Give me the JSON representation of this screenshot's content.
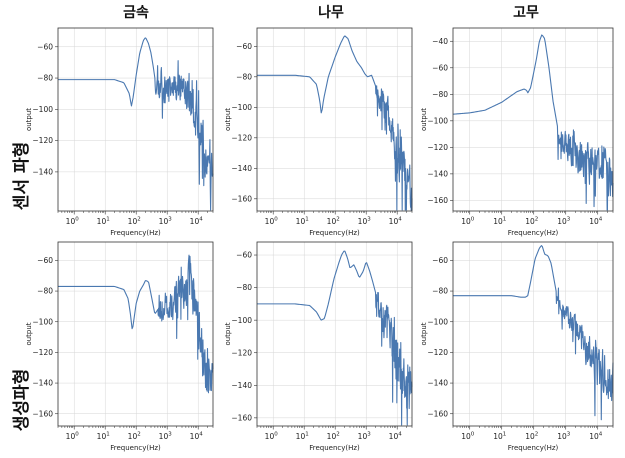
{
  "figure": {
    "column_titles": [
      "금속",
      "나무",
      "고무"
    ],
    "row_titles": [
      "센서 파형",
      "생성파형"
    ],
    "line_color": "#4a78b0"
  },
  "chart_data": [
    {
      "type": "line",
      "row": 0,
      "col": 0,
      "xlabel": "Frequency(Hz)",
      "ylabel": "output",
      "xscale": "log",
      "xlim": [
        0.3,
        30000
      ],
      "ylim": [
        -165,
        -48
      ],
      "yticks": [
        -140,
        -120,
        -100,
        -80,
        -60
      ],
      "xticks": [
        1,
        10,
        100,
        1000,
        10000
      ],
      "xticklabels": [
        "10^0",
        "10^1",
        "10^2",
        "10^3",
        "10^4"
      ],
      "series": [
        {
          "profile": "smooth",
          "x": [
            0.3,
            5,
            20,
            40,
            60,
            70,
            80,
            100,
            130,
            170,
            200,
            250,
            300,
            350,
            400
          ],
          "y": [
            -81,
            -81,
            -81,
            -83,
            -90,
            -98,
            -92,
            -78,
            -64,
            -56,
            -54,
            -58,
            -64,
            -72,
            -80
          ],
          "noise": {
            "x_start": 400,
            "x_end": 30000,
            "env": [
              [
                400,
                -82
              ],
              [
                1000,
                -88
              ],
              [
                3000,
                -84
              ],
              [
                6000,
                -96
              ],
              [
                10000,
                -112
              ],
              [
                20000,
                -135
              ],
              [
                30000,
                -145
              ]
            ],
            "amp": [
              [
                400,
                10
              ],
              [
                3000,
                14
              ],
              [
                10000,
                22
              ],
              [
                30000,
                18
              ]
            ],
            "seed": 11,
            "n": 170
          }
        }
      ]
    },
    {
      "type": "line",
      "row": 0,
      "col": 1,
      "xlabel": "Frequency(Hz)",
      "ylabel": "output",
      "xscale": "log",
      "xlim": [
        0.3,
        30000
      ],
      "ylim": [
        -168,
        -48
      ],
      "yticks": [
        -160,
        -140,
        -120,
        -100,
        -80,
        -60
      ],
      "xticks": [
        1,
        10,
        100,
        1000,
        10000
      ],
      "xticklabels": [
        "10^0",
        "10^1",
        "10^2",
        "10^3",
        "10^4"
      ],
      "series": [
        {
          "profile": "smooth",
          "x": [
            0.3,
            5,
            15,
            25,
            32,
            36,
            42,
            60,
            100,
            150,
            200,
            260,
            350,
            500,
            700,
            900,
            1100,
            1500,
            2000
          ],
          "y": [
            -79,
            -79,
            -80,
            -85,
            -96,
            -105,
            -95,
            -80,
            -67,
            -58,
            -53,
            -55,
            -63,
            -70,
            -74,
            -78,
            -80,
            -79,
            -86
          ],
          "noise": {
            "x_start": 2000,
            "x_end": 30000,
            "env": [
              [
                2000,
                -88
              ],
              [
                5000,
                -103
              ],
              [
                10000,
                -130
              ],
              [
                20000,
                -145
              ],
              [
                30000,
                -150
              ]
            ],
            "amp": [
              [
                2000,
                8
              ],
              [
                10000,
                18
              ],
              [
                30000,
                22
              ]
            ],
            "seed": 23,
            "n": 130
          }
        }
      ]
    },
    {
      "type": "line",
      "row": 0,
      "col": 2,
      "xlabel": "Frequency(Hz)",
      "ylabel": "output",
      "xscale": "log",
      "xlim": [
        0.3,
        30000
      ],
      "ylim": [
        -168,
        -30
      ],
      "yticks": [
        -160,
        -140,
        -120,
        -100,
        -80,
        -60,
        -40
      ],
      "xticks": [
        1,
        10,
        100,
        1000,
        10000
      ],
      "xticklabels": [
        "10^0",
        "10^1",
        "10^2",
        "10^3",
        "10^4"
      ],
      "series": [
        {
          "profile": "smooth",
          "x": [
            0.3,
            1,
            3,
            10,
            30,
            50,
            60,
            65,
            80,
            120,
            150,
            180,
            220,
            300,
            400,
            550
          ],
          "y": [
            -95,
            -94,
            -92,
            -86,
            -78,
            -76,
            -77,
            -79,
            -75,
            -54,
            -40,
            -35,
            -38,
            -60,
            -85,
            -104
          ],
          "noise": {
            "x_start": 550,
            "x_end": 30000,
            "env": [
              [
                550,
                -110
              ],
              [
                1000,
                -118
              ],
              [
                3000,
                -130
              ],
              [
                10000,
                -135
              ],
              [
                30000,
                -140
              ]
            ],
            "amp": [
              [
                550,
                10
              ],
              [
                3000,
                20
              ],
              [
                30000,
                24
              ]
            ],
            "seed": 37,
            "n": 170
          }
        }
      ]
    },
    {
      "type": "line",
      "row": 1,
      "col": 0,
      "xlabel": "Frequency(Hz)",
      "ylabel": "output",
      "xscale": "log",
      "xlim": [
        0.3,
        30000
      ],
      "ylim": [
        -168,
        -48
      ],
      "yticks": [
        -160,
        -140,
        -120,
        -100,
        -80,
        -60
      ],
      "xticks": [
        1,
        10,
        100,
        1000,
        10000
      ],
      "xticklabels": [
        "10^0",
        "10^1",
        "10^2",
        "10^3",
        "10^4"
      ],
      "series": [
        {
          "profile": "smooth",
          "x": [
            0.3,
            5,
            20,
            40,
            55,
            65,
            75,
            85,
            100,
            130,
            170,
            200,
            250,
            300,
            400,
            500
          ],
          "y": [
            -77,
            -77,
            -77,
            -79,
            -85,
            -95,
            -106,
            -98,
            -88,
            -80,
            -76,
            -73,
            -74,
            -82,
            -95,
            -92
          ],
          "noise": {
            "x_start": 500,
            "x_end": 30000,
            "env": [
              [
                500,
                -92
              ],
              [
                1500,
                -88
              ],
              [
                4000,
                -78
              ],
              [
                6000,
                -70
              ],
              [
                9000,
                -100
              ],
              [
                15000,
                -125
              ],
              [
                30000,
                -140
              ]
            ],
            "amp": [
              [
                500,
                12
              ],
              [
                3000,
                16
              ],
              [
                6000,
                22
              ],
              [
                30000,
                22
              ]
            ],
            "seed": 53,
            "n": 170
          }
        }
      ]
    },
    {
      "type": "line",
      "row": 1,
      "col": 1,
      "xlabel": "Frequency(Hz)",
      "ylabel": "output",
      "xscale": "log",
      "xlim": [
        0.3,
        30000
      ],
      "ylim": [
        -165,
        -52
      ],
      "yticks": [
        -160,
        -140,
        -120,
        -100,
        -80,
        -60
      ],
      "xticks": [
        1,
        10,
        100,
        1000,
        10000
      ],
      "xticklabels": [
        "10^0",
        "10^1",
        "10^2",
        "10^3",
        "10^4"
      ],
      "series": [
        {
          "profile": "smooth",
          "x": [
            0.3,
            5,
            15,
            25,
            35,
            45,
            60,
            90,
            130,
            160,
            200,
            250,
            300,
            400,
            500,
            600,
            800,
            1000,
            1300,
            1600,
            2000
          ],
          "y": [
            -90,
            -90,
            -91,
            -95,
            -100,
            -99,
            -90,
            -75,
            -65,
            -60,
            -57,
            -62,
            -68,
            -66,
            -70,
            -74,
            -70,
            -64,
            -70,
            -76,
            -83
          ],
          "noise": {
            "x_start": 2000,
            "x_end": 30000,
            "env": [
              [
                2000,
                -88
              ],
              [
                5000,
                -103
              ],
              [
                10000,
                -125
              ],
              [
                20000,
                -140
              ],
              [
                30000,
                -145
              ]
            ],
            "amp": [
              [
                2000,
                10
              ],
              [
                10000,
                20
              ],
              [
                30000,
                22
              ]
            ],
            "seed": 71,
            "n": 130
          }
        }
      ]
    },
    {
      "type": "line",
      "row": 1,
      "col": 2,
      "xlabel": "Frequency(Hz)",
      "ylabel": "output",
      "xscale": "log",
      "xlim": [
        0.3,
        30000
      ],
      "ylim": [
        -168,
        -48
      ],
      "yticks": [
        -160,
        -140,
        -120,
        -100,
        -80,
        -60
      ],
      "xticks": [
        1,
        10,
        100,
        1000,
        10000
      ],
      "xticklabels": [
        "10^0",
        "10^1",
        "10^2",
        "10^3",
        "10^4"
      ],
      "series": [
        {
          "profile": "smooth",
          "x": [
            0.3,
            5,
            20,
            40,
            55,
            65,
            80,
            110,
            150,
            180,
            220,
            280,
            350,
            500
          ],
          "y": [
            -83,
            -83,
            -83,
            -84,
            -84,
            -83,
            -74,
            -59,
            -52,
            -50,
            -56,
            -57,
            -62,
            -80
          ],
          "noise": {
            "x_start": 500,
            "x_end": 30000,
            "env": [
              [
                500,
                -86
              ],
              [
                1000,
                -95
              ],
              [
                3000,
                -110
              ],
              [
                10000,
                -130
              ],
              [
                30000,
                -145
              ]
            ],
            "amp": [
              [
                500,
                6
              ],
              [
                3000,
                12
              ],
              [
                10000,
                20
              ],
              [
                30000,
                22
              ]
            ],
            "seed": 89,
            "n": 170
          }
        }
      ]
    }
  ]
}
